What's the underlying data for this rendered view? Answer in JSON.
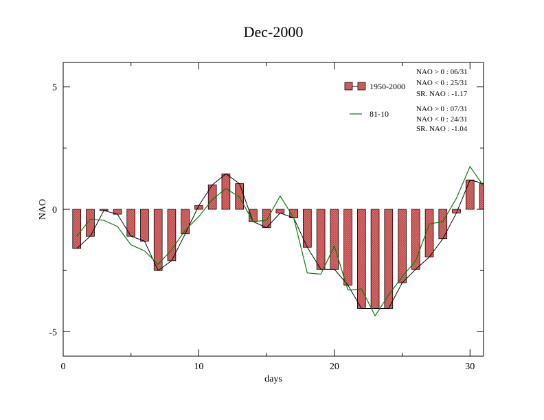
{
  "chart_data": {
    "type": "bar",
    "title": "Dec-2000",
    "xlabel": "days",
    "ylabel": "NAO",
    "xlim": [
      0,
      31
    ],
    "ylim": [
      -6,
      6
    ],
    "x_ticks": [
      0,
      10,
      20,
      30
    ],
    "y_ticks": [
      -5,
      0,
      5
    ],
    "x_tick_labels": [
      "0",
      "10",
      "20",
      "30"
    ],
    "y_tick_labels": [
      "-5",
      "0",
      "5"
    ],
    "grid": false,
    "legend_position": "top-right",
    "colors": {
      "bar_fill": "#e07070",
      "bar_hatch": "#b84848",
      "bar_line": "#000000",
      "line_81_10": "#008000"
    },
    "x": [
      1,
      2,
      3,
      4,
      5,
      6,
      7,
      8,
      9,
      10,
      11,
      12,
      13,
      14,
      15,
      16,
      17,
      18,
      19,
      20,
      21,
      22,
      23,
      24,
      25,
      26,
      27,
      28,
      29,
      30,
      31
    ],
    "series": [
      {
        "name": "1950-2000",
        "kind": "bar",
        "values": [
          -1.6,
          -1.1,
          -0.05,
          -0.2,
          -1.1,
          -1.3,
          -2.5,
          -2.1,
          -1.0,
          0.15,
          1.0,
          1.45,
          1.05,
          -0.5,
          -0.75,
          -0.15,
          -0.35,
          -1.55,
          -2.45,
          -2.45,
          -3.1,
          -4.05,
          -4.05,
          -4.05,
          -3.0,
          -2.45,
          -1.95,
          -1.2,
          -0.15,
          1.2,
          1.05
        ]
      },
      {
        "name": "81-10",
        "kind": "line",
        "values": [
          -1.1,
          -0.4,
          -0.45,
          -0.7,
          -1.45,
          -1.7,
          -2.25,
          -1.65,
          -0.85,
          -0.3,
          0.4,
          0.85,
          0.5,
          -0.5,
          -0.45,
          0.55,
          -0.35,
          -2.6,
          -2.65,
          -1.5,
          -3.3,
          -3.25,
          -4.35,
          -3.5,
          -2.75,
          -2.1,
          -0.6,
          -0.5,
          0.45,
          1.75,
          0.95
        ]
      }
    ],
    "legend": [
      {
        "label": "1950-2000",
        "stats": [
          "NAO > 0 : 06/31",
          "NAO < 0 : 25/31",
          "SR. NAO : -1.17"
        ]
      },
      {
        "label": "81-10",
        "stats": [
          "NAO > 0 : 07/31",
          "NAO < 0 : 24/31",
          "SR. NAO : -1.04"
        ]
      }
    ]
  }
}
